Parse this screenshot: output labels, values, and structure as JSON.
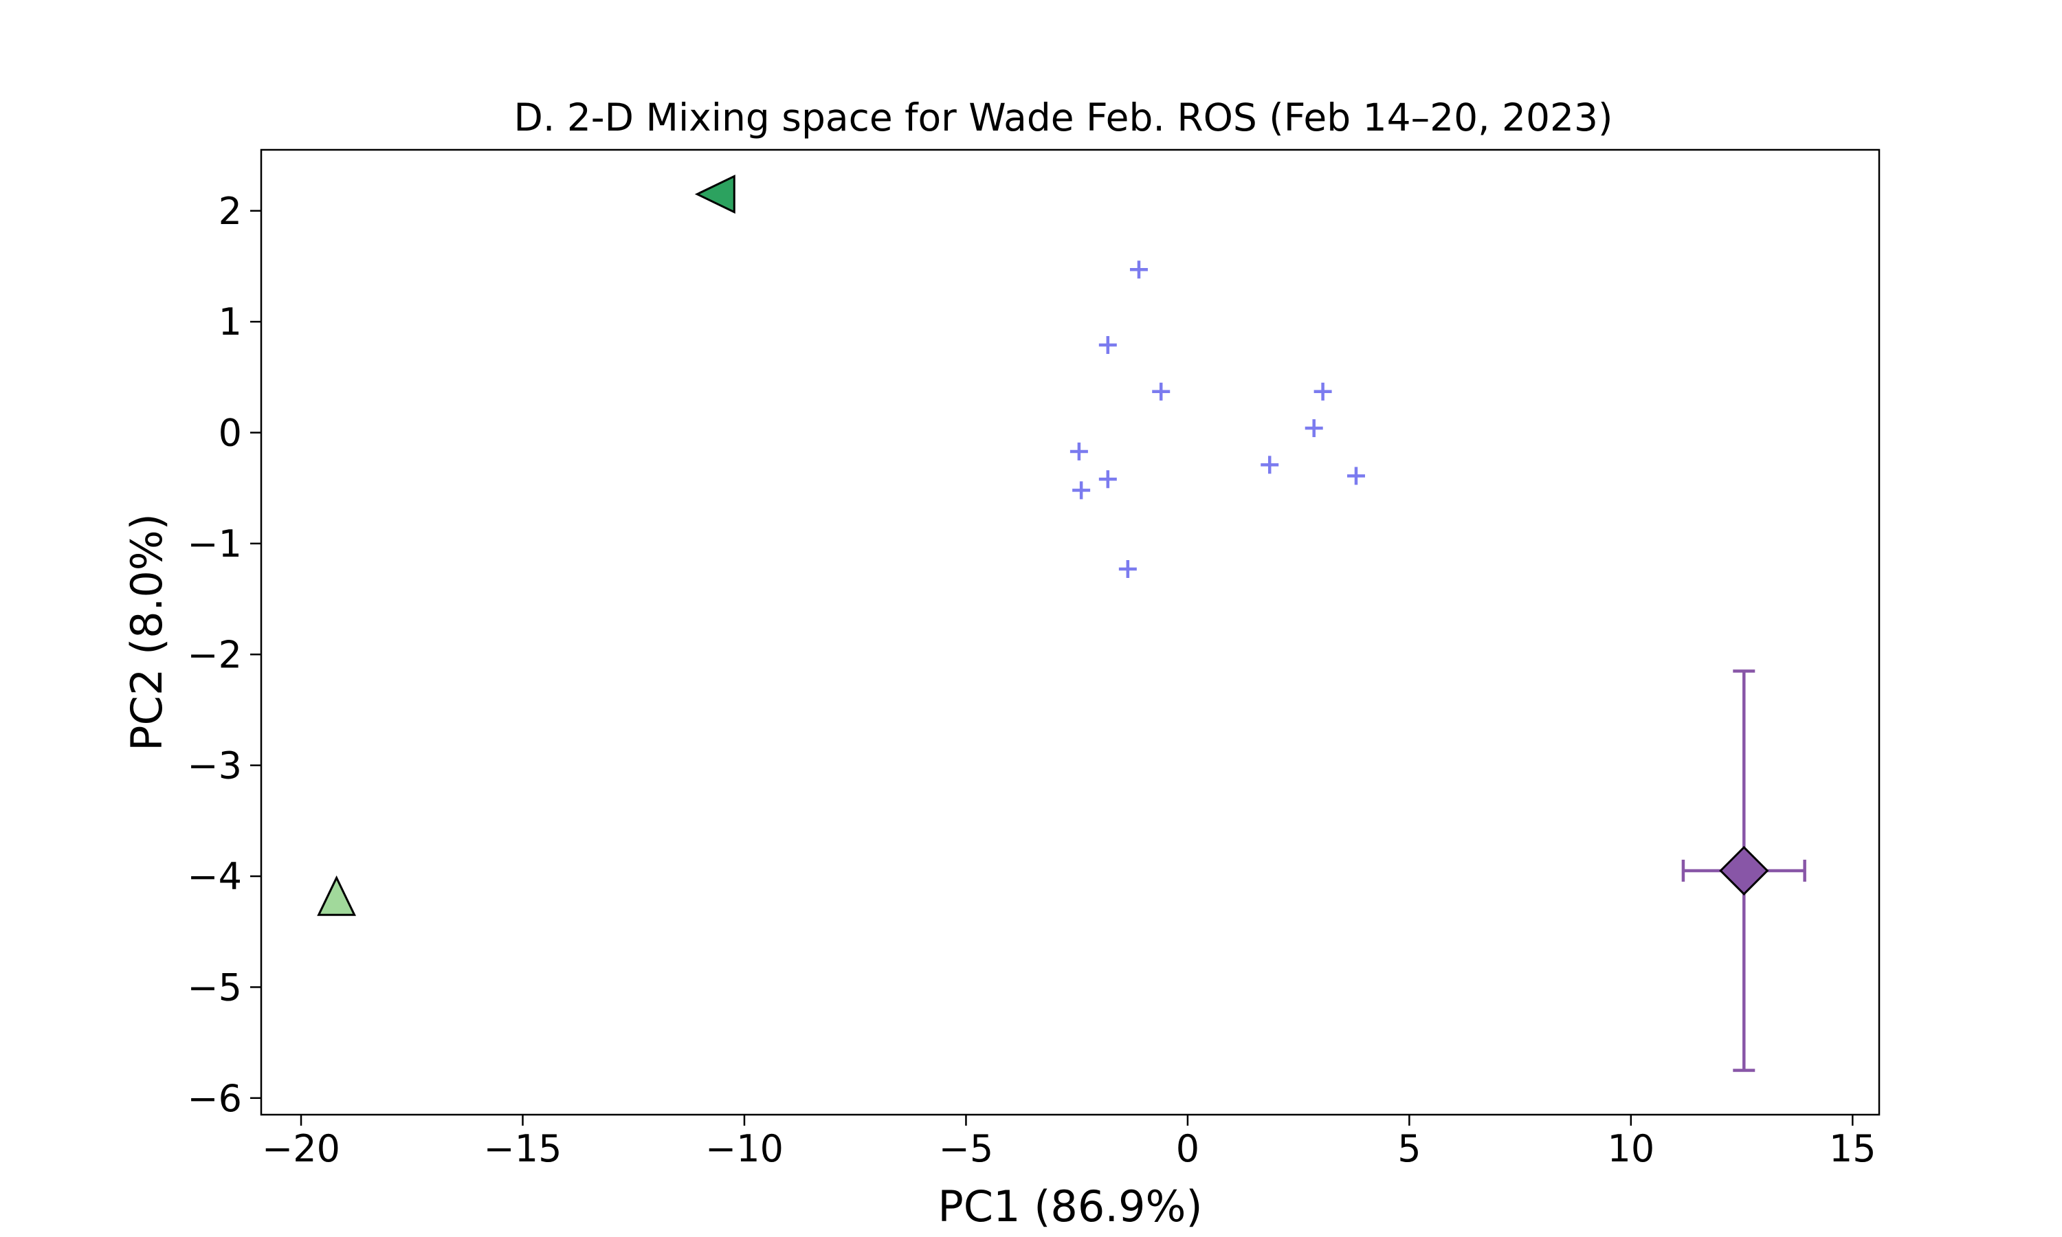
{
  "chart_data": {
    "type": "scatter",
    "title": "D. 2-D Mixing space for Wade Feb. ROS (Feb 14–20, 2023)",
    "xlabel": "PC1 (86.9%)",
    "ylabel": "PC2 (8.0%)",
    "xlim": [
      -20.9,
      15.6
    ],
    "ylim": [
      -6.15,
      2.55
    ],
    "xticks": [
      -20,
      -15,
      -10,
      -5,
      0,
      5,
      10,
      15
    ],
    "yticks": [
      -6,
      -5,
      -4,
      -3,
      -2,
      -1,
      0,
      1,
      2
    ],
    "grid": false,
    "series": [
      {
        "marker": "plus",
        "color": "#7b7bef",
        "points": [
          {
            "x": -1.1,
            "y": 1.47
          },
          {
            "x": -1.8,
            "y": 0.79
          },
          {
            "x": -0.6,
            "y": 0.37
          },
          {
            "x": 3.05,
            "y": 0.37
          },
          {
            "x": 2.85,
            "y": 0.04
          },
          {
            "x": -2.45,
            "y": -0.17
          },
          {
            "x": 1.85,
            "y": -0.29
          },
          {
            "x": -1.8,
            "y": -0.42
          },
          {
            "x": 3.8,
            "y": -0.39
          },
          {
            "x": -2.4,
            "y": -0.52
          },
          {
            "x": -1.35,
            "y": -1.23
          }
        ]
      },
      {
        "marker": "triangle-left",
        "color": "#2ca25f",
        "points": [
          {
            "x": -10.6,
            "y": 2.15
          }
        ]
      },
      {
        "marker": "triangle-up",
        "color": "#a1d99b",
        "points": [
          {
            "x": -19.2,
            "y": -4.2
          }
        ]
      },
      {
        "marker": "diamond",
        "color": "#8856a7",
        "points": [
          {
            "x": 12.55,
            "y": -3.95,
            "xerr": 1.37,
            "yerr_low": 1.8,
            "yerr_high": 1.8
          }
        ]
      }
    ]
  }
}
